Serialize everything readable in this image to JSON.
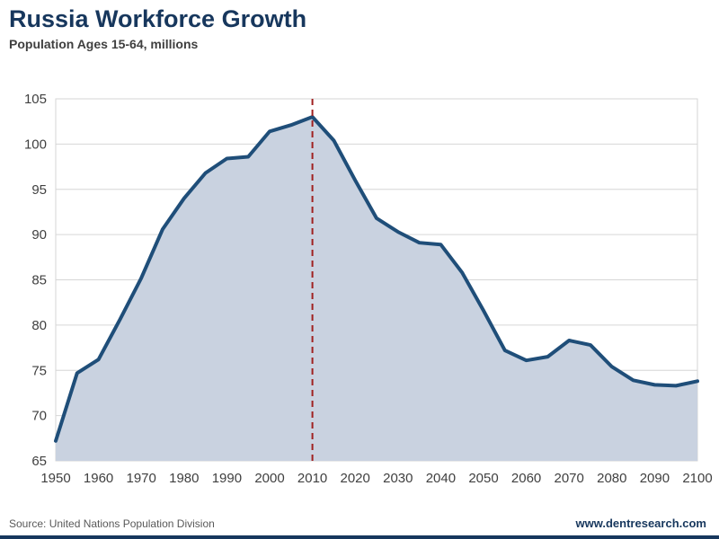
{
  "header": {
    "title": "Russia Workforce Growth",
    "subtitle": "Population Ages 15-64, millions"
  },
  "footer": {
    "source": "Source: United Nations Population Division",
    "website": "www.dentresearch.com"
  },
  "chart_data": {
    "type": "area",
    "title": "Russia Workforce Growth",
    "subtitle": "Population Ages 15-64, millions",
    "xlabel": "",
    "ylabel": "",
    "x": [
      1950,
      1955,
      1960,
      1965,
      1970,
      1975,
      1980,
      1985,
      1990,
      1995,
      2000,
      2005,
      2010,
      2015,
      2020,
      2025,
      2030,
      2035,
      2040,
      2045,
      2050,
      2055,
      2060,
      2065,
      2070,
      2075,
      2080,
      2085,
      2090,
      2095,
      2100
    ],
    "values": [
      67.2,
      74.7,
      76.2,
      80.6,
      85.2,
      90.6,
      94.0,
      96.8,
      98.4,
      98.6,
      101.4,
      102.1,
      103.0,
      100.4,
      96.0,
      91.8,
      90.3,
      89.1,
      88.9,
      85.8,
      81.6,
      77.2,
      76.1,
      76.5,
      78.3,
      77.8,
      75.4,
      73.9,
      73.4,
      73.3,
      73.8
    ],
    "xlim": [
      1950,
      2100
    ],
    "ylim": [
      65,
      105
    ],
    "x_ticks": [
      1950,
      1960,
      1970,
      1980,
      1990,
      2000,
      2010,
      2020,
      2030,
      2040,
      2050,
      2060,
      2070,
      2080,
      2090,
      2100
    ],
    "y_ticks": [
      65,
      70,
      75,
      80,
      85,
      90,
      95,
      100,
      105
    ],
    "grid": true,
    "legend": "none",
    "annotations": [
      {
        "type": "vline",
        "x": 2010,
        "style": "dashed",
        "color": "#A02020",
        "label": ""
      }
    ],
    "colors": {
      "line": "#1F4E79",
      "fill": "#C9D2E0",
      "grid": "#D6D6D6",
      "tick_text": "#404040",
      "title": "#17375D",
      "accent_red": "#A02020"
    }
  }
}
